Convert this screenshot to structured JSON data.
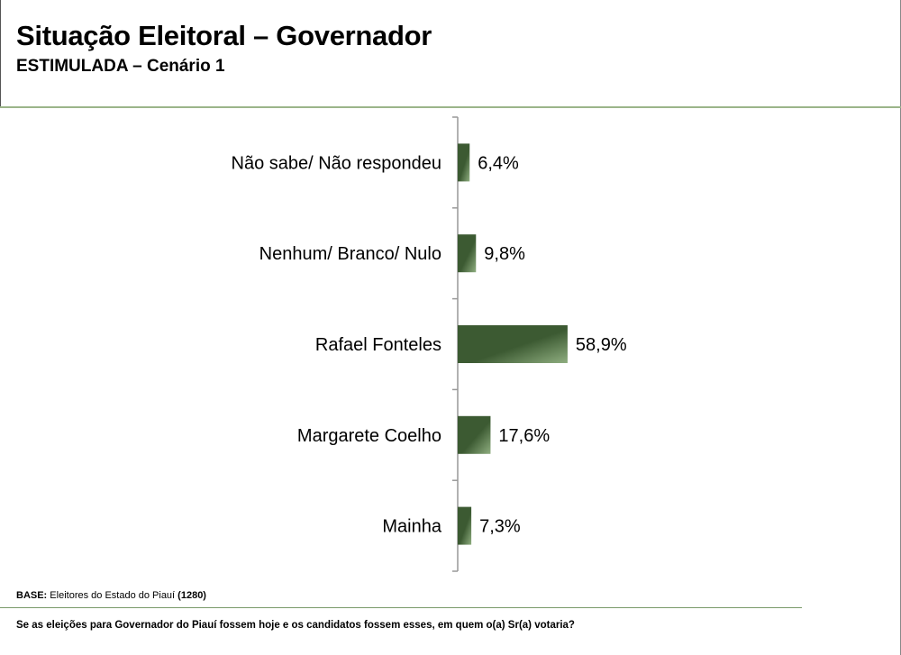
{
  "header": {
    "title": "Situação Eleitoral – Governador",
    "subtitle": "ESTIMULADA – Cenário 1"
  },
  "footer": {
    "base_label": "BASE:",
    "base_text": "Eleitores do Estado do Piauí",
    "base_count": "(1280)",
    "question": "Se as eleições para Governador do Piauí fossem hoje e os candidatos fossem esses, em quem o(a) Sr(a) votaria?"
  },
  "chart_data": {
    "type": "bar",
    "orientation": "horizontal",
    "categories": [
      "Não sabe/ Não respondeu",
      "Nenhum/ Branco/ Nulo",
      "Rafael Fonteles",
      "Margarete Coelho",
      "Mainha"
    ],
    "values": [
      6.4,
      9.8,
      58.9,
      17.6,
      7.3
    ],
    "value_labels": [
      "6,4%",
      "9,8%",
      "58,9%",
      "17,6%",
      "7,3%"
    ],
    "xlim": [
      0,
      100
    ],
    "grid": false,
    "colors": {
      "bar_dark": "#3c5a32",
      "bar_light": "#8fae80",
      "axis": "#999999"
    }
  }
}
